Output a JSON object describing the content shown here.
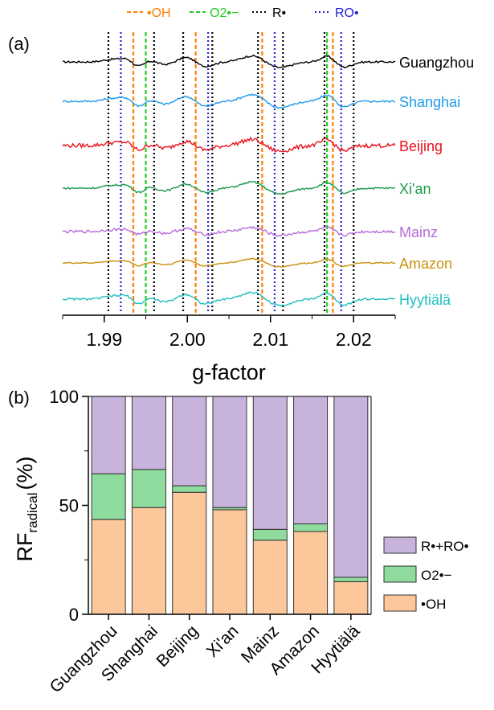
{
  "chart_data": [
    {
      "panel": "(a)",
      "type": "line",
      "xlabel": "g-factor",
      "xlim": [
        1.985,
        2.025
      ],
      "xticks": [
        1.99,
        2.0,
        2.01,
        2.02
      ],
      "xtick_labels": [
        "1.99",
        "2.00",
        "2.01",
        "2.02"
      ],
      "legend_position": "top",
      "legend": [
        {
          "key": "oh",
          "label": "•OH",
          "color": "#ff7f00",
          "style": "dashed"
        },
        {
          "key": "o2",
          "label": "O2•−",
          "color": "#22cc22",
          "style": "dashed"
        },
        {
          "key": "r",
          "label": "R•",
          "color": "#000000",
          "style": "dotted"
        },
        {
          "key": "ro",
          "label": "RO•",
          "color": "#1f1fd6",
          "style": "dotted"
        }
      ],
      "reference_lines": {
        "r": [
          1.9905,
          1.996,
          1.9995,
          2.003,
          2.0085,
          2.0115,
          2.0165,
          2.02
        ],
        "ro": [
          1.992,
          2.0025,
          2.0105,
          2.0185
        ],
        "oh": [
          1.9935,
          2.001,
          2.009,
          2.0175
        ],
        "o2": [
          1.995,
          2.0168
        ]
      },
      "series": [
        {
          "name": "Guangzhou",
          "color": "#000000"
        },
        {
          "name": "Shanghai",
          "color": "#1e9be8"
        },
        {
          "name": "Beijing",
          "color": "#e8121c"
        },
        {
          "name": "Xi'an",
          "color": "#1a9a4a"
        },
        {
          "name": "Mainz",
          "color": "#b76ad9"
        },
        {
          "name": "Amazon",
          "color": "#c9900e"
        },
        {
          "name": "Hyytiälä",
          "color": "#21bfbf"
        }
      ]
    },
    {
      "panel": "(b)",
      "type": "bar",
      "stacked": true,
      "ylabel": "RF",
      "ylabel_sub": "radical",
      "ylabel_unit": "(%)",
      "ylim": [
        0,
        100
      ],
      "yticks": [
        0,
        50,
        100
      ],
      "categories": [
        "Guangzhou",
        "Shanghai",
        "Beijing",
        "Xi'an",
        "Mainz",
        "Amazon",
        "Hyytiälä"
      ],
      "series": [
        {
          "name": "•OH",
          "color": "#fcc79a",
          "values": [
            43.5,
            49,
            56,
            48,
            34,
            38,
            15
          ]
        },
        {
          "name": "O2•−",
          "color": "#8fdb9e",
          "values": [
            21,
            17.5,
            3,
            1,
            5,
            3.5,
            2
          ]
        },
        {
          "name": "R•+RO•",
          "color": "#c8b3dc",
          "values": [
            35.5,
            33.5,
            41,
            51,
            61,
            58.5,
            83
          ]
        }
      ],
      "legend_position": "right",
      "legend_order": [
        "R•+RO•",
        "O2•−",
        "•OH"
      ]
    }
  ]
}
